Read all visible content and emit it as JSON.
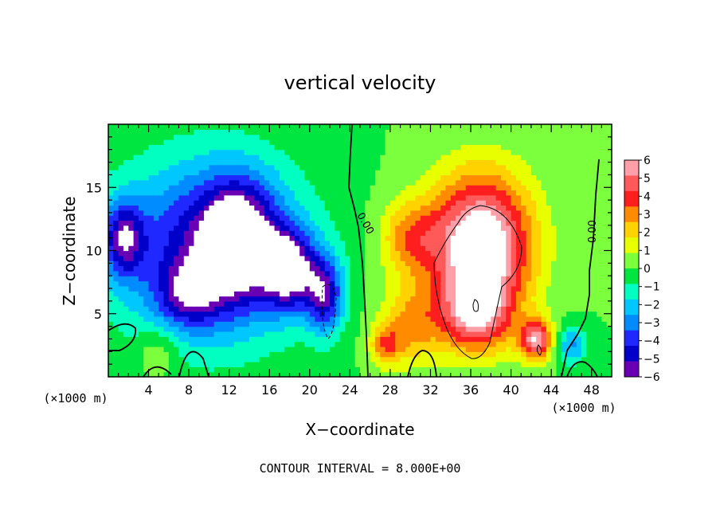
{
  "chart_data": {
    "type": "heatmap",
    "title": "vertical velocity",
    "xlabel": "X−coordinate",
    "ylabel": "Z−coordinate",
    "x_units": "(×1000 m)",
    "xlim": [
      0,
      50
    ],
    "ylim": [
      0,
      20
    ],
    "x_ticks": [
      4,
      8,
      12,
      16,
      20,
      24,
      28,
      32,
      36,
      40,
      44,
      48
    ],
    "y_ticks": [
      5,
      10,
      15
    ],
    "colorbar": {
      "range": [
        -6,
        6
      ],
      "ticks": [
        6,
        5,
        4,
        3,
        2,
        1,
        0,
        -1,
        -2,
        -3,
        -4,
        -5,
        -6
      ],
      "tick_labels": [
        "6",
        "5",
        "4",
        "3",
        "2",
        "1",
        "0",
        "−1",
        "−2",
        "−3",
        "−4",
        "−5",
        "−6"
      ]
    },
    "contour_labels": [
      "0.00",
      "0.00"
    ],
    "contour_interval_text": "CONTOUR INTERVAL = 8.000E+00",
    "field_blobs": [
      {
        "x": 10,
        "z": 10,
        "sx": 9,
        "sz": 7,
        "amp": -5.5
      },
      {
        "x": 13,
        "z": 11,
        "sx": 3.5,
        "sz": 4.5,
        "amp": -5
      },
      {
        "x": 18,
        "z": 8.5,
        "sx": 2.5,
        "sz": 3,
        "amp": -6
      },
      {
        "x": 21.5,
        "z": 6.5,
        "sx": 1.8,
        "sz": 3,
        "amp": -5
      },
      {
        "x": 1.5,
        "z": 11,
        "sx": 2,
        "sz": 3,
        "amp": -4.5
      },
      {
        "x": 8,
        "z": 6.5,
        "sx": 3,
        "sz": 2.5,
        "amp": -3
      },
      {
        "x": 5,
        "z": 2,
        "sx": 2,
        "sz": 2,
        "amp": 1.5
      },
      {
        "x": 37,
        "z": 10.5,
        "sx": 5,
        "sz": 5.5,
        "amp": 8
      },
      {
        "x": 36.5,
        "z": 5,
        "sx": 3.5,
        "sz": 3,
        "amp": 5
      },
      {
        "x": 42.5,
        "z": 3,
        "sx": 1.6,
        "sz": 1.6,
        "amp": 6
      },
      {
        "x": 30,
        "z": 4,
        "sx": 3,
        "sz": 3,
        "amp": 3
      },
      {
        "x": 27.5,
        "z": 2.5,
        "sx": 1.5,
        "sz": 1.5,
        "amp": 3
      },
      {
        "x": 30,
        "z": 11,
        "sx": 3,
        "sz": 3,
        "amp": 3
      },
      {
        "x": 46,
        "z": 2.5,
        "sx": 1.5,
        "sz": 1.5,
        "amp": -3
      }
    ]
  }
}
